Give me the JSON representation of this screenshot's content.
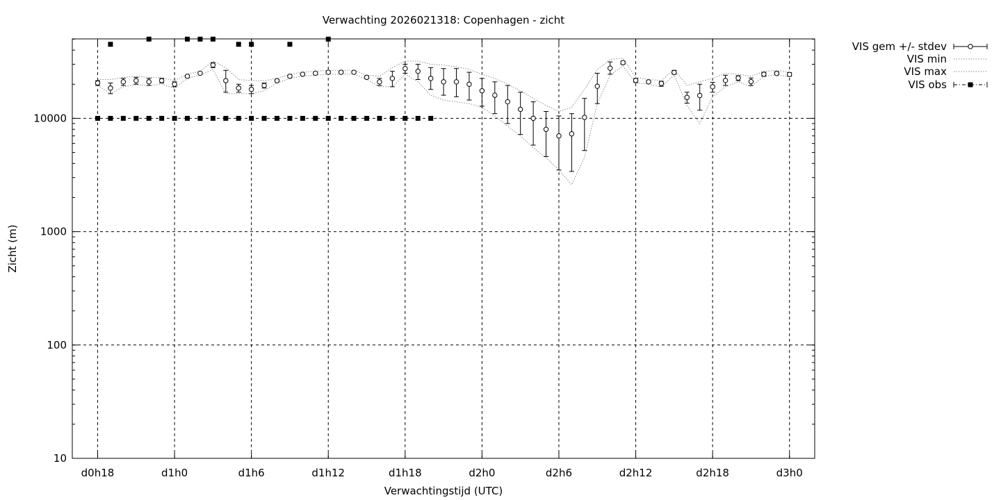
{
  "chart_data": {
    "type": "line",
    "title": "Verwachting 2026021318: Copenhagen - zicht",
    "xlabel": "Verwachtingstijd (UTC)",
    "ylabel": "Zicht (m)",
    "y_scale": "log",
    "ylim": [
      10,
      50000
    ],
    "xlim": [
      -2,
      56
    ],
    "x_unit": "hours since d0h18",
    "grid": true,
    "legend_position": "top-right, outside plot",
    "x_ticks": [
      {
        "x": 0,
        "label": "d0h18"
      },
      {
        "x": 6,
        "label": "d1h0"
      },
      {
        "x": 12,
        "label": "d1h6"
      },
      {
        "x": 18,
        "label": "d1h12"
      },
      {
        "x": 24,
        "label": "d1h18"
      },
      {
        "x": 30,
        "label": "d2h0"
      },
      {
        "x": 36,
        "label": "d2h6"
      },
      {
        "x": 42,
        "label": "d2h12"
      },
      {
        "x": 48,
        "label": "d2h18"
      },
      {
        "x": 54,
        "label": "d3h0"
      }
    ],
    "y_ticks": [
      {
        "y": 10,
        "label": "10"
      },
      {
        "y": 100,
        "label": "100"
      },
      {
        "y": 1000,
        "label": "1000"
      },
      {
        "y": 10000,
        "label": "10000"
      }
    ],
    "series": [
      {
        "name": "VIS gem +/- stdev",
        "style": "open circles with error bars",
        "x": [
          0,
          1,
          2,
          3,
          4,
          5,
          6,
          7,
          8,
          9,
          10,
          11,
          12,
          13,
          14,
          15,
          16,
          17,
          18,
          19,
          20,
          21,
          22,
          23,
          24,
          25,
          26,
          27,
          28,
          29,
          30,
          31,
          32,
          33,
          34,
          35,
          36,
          37,
          38,
          39,
          40,
          41,
          42,
          43,
          44,
          45,
          46,
          47,
          48,
          49,
          50,
          51,
          52,
          53,
          54
        ],
        "y": [
          20500,
          18500,
          21000,
          21500,
          21000,
          21500,
          20000,
          23500,
          25000,
          29500,
          21500,
          18500,
          18000,
          19500,
          21500,
          23500,
          24500,
          25000,
          25500,
          25500,
          25500,
          23000,
          21000,
          22500,
          27500,
          26000,
          22500,
          21000,
          21000,
          20000,
          17500,
          16000,
          14000,
          12000,
          10000,
          8000,
          7000,
          7300,
          10200,
          19200,
          27700,
          31000,
          21600,
          21000,
          20300,
          25400,
          15300,
          15900,
          19000,
          21600,
          22700,
          21100,
          24500,
          24900,
          24400
        ],
        "err_low": [
          19500,
          16500,
          19500,
          20000,
          19500,
          20500,
          19000,
          23000,
          24500,
          28000,
          17000,
          17000,
          16500,
          18500,
          21000,
          23000,
          24000,
          24500,
          25000,
          25000,
          25000,
          22500,
          19500,
          19000,
          25000,
          22000,
          18000,
          16000,
          15500,
          14500,
          12800,
          11000,
          9000,
          7200,
          5800,
          4600,
          3500,
          3400,
          5200,
          13500,
          24500,
          30000,
          20700,
          20500,
          19200,
          24500,
          13600,
          11800,
          17000,
          19500,
          21500,
          19500,
          23500,
          24300,
          23500
        ],
        "err_high": [
          21500,
          20500,
          22500,
          23000,
          22500,
          22500,
          21000,
          24000,
          25500,
          31000,
          26500,
          20000,
          19500,
          20500,
          22000,
          24000,
          25000,
          25500,
          26000,
          26000,
          26000,
          23500,
          22500,
          26000,
          30000,
          30000,
          28000,
          27500,
          27500,
          25500,
          22500,
          21000,
          19500,
          17000,
          14000,
          11500,
          10500,
          11000,
          15000,
          25000,
          31500,
          32000,
          22500,
          21500,
          21200,
          26500,
          17000,
          20000,
          20800,
          24000,
          23800,
          22700,
          25500,
          25800,
          25300
        ]
      },
      {
        "name": "VIS min",
        "style": "dotted line",
        "x": [
          0,
          1,
          2,
          3,
          4,
          5,
          6,
          7,
          8,
          9,
          10,
          11,
          12,
          13,
          14,
          15,
          16,
          17,
          18,
          19,
          20,
          21,
          22,
          23,
          24,
          25,
          26,
          27,
          28,
          29,
          30,
          31,
          32,
          33,
          34,
          35,
          36,
          37,
          38,
          39,
          40,
          41,
          42,
          43,
          44,
          45,
          46,
          47,
          48,
          49,
          50,
          51,
          52,
          53,
          54
        ],
        "y": [
          19500,
          16500,
          19000,
          19800,
          19500,
          20000,
          18500,
          22500,
          24000,
          27000,
          16500,
          16500,
          16500,
          17500,
          20500,
          22500,
          23500,
          24000,
          24500,
          24500,
          24500,
          22000,
          19000,
          19000,
          24500,
          21000,
          16000,
          14500,
          14000,
          13500,
          12500,
          10500,
          8500,
          7000,
          5500,
          4500,
          3500,
          2600,
          4500,
          13500,
          24000,
          29000,
          20500,
          20000,
          19000,
          24000,
          13000,
          9000,
          15500,
          19000,
          21000,
          19000,
          23500,
          24000,
          23500
        ]
      },
      {
        "name": "VIS max",
        "style": "dotted line",
        "x": [
          0,
          1,
          2,
          3,
          4,
          5,
          6,
          7,
          8,
          9,
          10,
          11,
          12,
          13,
          14,
          15,
          16,
          17,
          18,
          19,
          20,
          21,
          22,
          23,
          24,
          25,
          26,
          27,
          28,
          29,
          30,
          31,
          32,
          33,
          34,
          35,
          36,
          37,
          38,
          39,
          40,
          41,
          42,
          43,
          44,
          45,
          46,
          47,
          48,
          49,
          50,
          51,
          52,
          53,
          54
        ],
        "y": [
          22000,
          22000,
          23000,
          23500,
          23000,
          22800,
          21500,
          24500,
          26000,
          32000,
          28000,
          22000,
          21500,
          21500,
          22500,
          24500,
          25500,
          26000,
          26500,
          26500,
          26500,
          24000,
          23500,
          28000,
          32000,
          32000,
          30000,
          29500,
          28500,
          27000,
          24500,
          22500,
          20000,
          17500,
          15000,
          13000,
          11500,
          12500,
          18000,
          27000,
          33000,
          34000,
          23000,
          22000,
          21500,
          27000,
          19500,
          21000,
          22500,
          25000,
          24500,
          23500,
          26000,
          26500,
          25500
        ]
      },
      {
        "name": "VIS obs",
        "style": "filled squares, dash-dot line",
        "x": [
          0,
          1,
          1,
          2,
          3,
          4,
          4,
          5,
          6,
          7,
          7,
          8,
          8,
          9,
          9,
          10,
          11,
          11,
          12,
          12,
          13,
          14,
          15,
          15,
          16,
          17,
          18,
          18,
          19,
          20,
          21,
          22,
          23,
          24,
          25,
          26
        ],
        "y": [
          10000,
          10000,
          45000,
          10000,
          10000,
          10000,
          50000,
          10000,
          10000,
          10000,
          50000,
          10000,
          50000,
          10000,
          50000,
          10000,
          10000,
          45000,
          10000,
          45000,
          10000,
          10000,
          10000,
          45000,
          10000,
          10000,
          10000,
          50000,
          10000,
          10000,
          10000,
          10000,
          10000,
          10000,
          10000,
          10000
        ]
      }
    ]
  }
}
